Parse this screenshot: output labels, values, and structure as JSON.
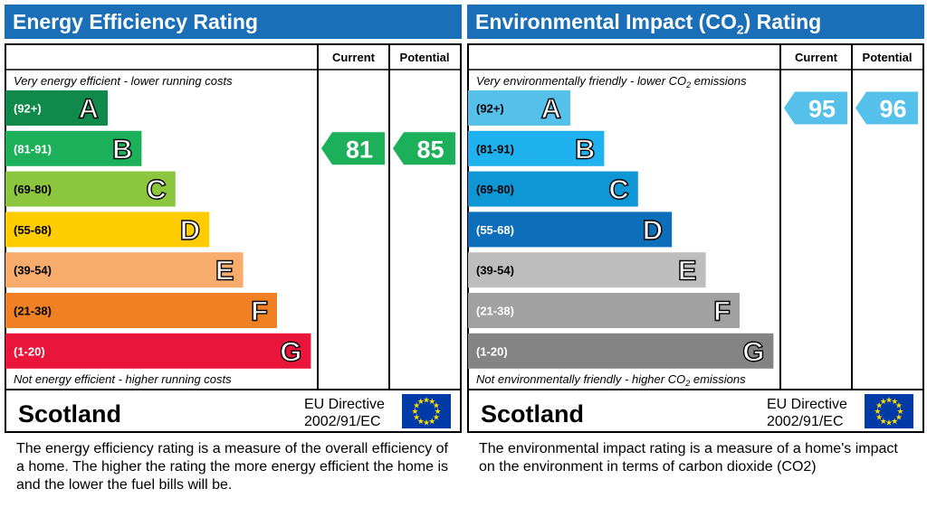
{
  "chart_data": [
    {
      "type": "bar",
      "title": "Energy Efficiency Rating",
      "columns": [
        "Current",
        "Potential"
      ],
      "top_note": "Very energy efficient - lower running costs",
      "bottom_note": "Not energy efficient - higher running costs",
      "bands": [
        {
          "range": "(92+)",
          "letter": "A",
          "color": "#0f8a4a"
        },
        {
          "range": "(81-91)",
          "letter": "B",
          "color": "#1bb059"
        },
        {
          "range": "(69-80)",
          "letter": "C",
          "color": "#8cc63f"
        },
        {
          "range": "(55-68)",
          "letter": "D",
          "color": "#ffcc00"
        },
        {
          "range": "(39-54)",
          "letter": "E",
          "color": "#f7ac6b"
        },
        {
          "range": "(21-38)",
          "letter": "F",
          "color": "#ef8023"
        },
        {
          "range": "(1-20)",
          "letter": "G",
          "color": "#e9153b"
        }
      ],
      "current": 81,
      "potential": 85,
      "current_color": "#1bb059",
      "potential_color": "#1bb059",
      "footer": {
        "country": "Scotland",
        "directive_line1": "EU Directive",
        "directive_line2": "2002/91/EC"
      },
      "description": "The energy efficiency rating is a measure of the overall efficiency of a home.  The higher the rating the more energy efficient the home is and the lower the fuel bills will be."
    },
    {
      "type": "bar",
      "title": "Environmental Impact (CO2) Rating",
      "columns": [
        "Current",
        "Potential"
      ],
      "top_note": "Very environmentally friendly - lower CO2 emissions",
      "bottom_note": "Not environmentally friendly - higher CO2 emissions",
      "bands": [
        {
          "range": "(92+)",
          "letter": "A",
          "color": "#55c0ea"
        },
        {
          "range": "(81-91)",
          "letter": "B",
          "color": "#1fb2ee"
        },
        {
          "range": "(69-80)",
          "letter": "C",
          "color": "#0e96d5"
        },
        {
          "range": "(55-68)",
          "letter": "D",
          "color": "#0d6fba"
        },
        {
          "range": "(39-54)",
          "letter": "E",
          "color": "#bdbdbd"
        },
        {
          "range": "(21-38)",
          "letter": "F",
          "color": "#a1a1a1"
        },
        {
          "range": "(1-20)",
          "letter": "G",
          "color": "#848484"
        }
      ],
      "current": 95,
      "potential": 96,
      "current_color": "#55c0ea",
      "potential_color": "#55c0ea",
      "footer": {
        "country": "Scotland",
        "directive_line1": "EU Directive",
        "directive_line2": "2002/91/EC"
      },
      "description": "The environmental impact rating is a measure of a home's impact on the environment in terms of carbon dioxide (CO2)"
    }
  ],
  "colors": {
    "title_bar": "#1a6fb8",
    "eu_flag": "#003aa6",
    "eu_star": "#ffdd00"
  },
  "icons": {
    "eu_flag": "eu-flag-icon"
  }
}
